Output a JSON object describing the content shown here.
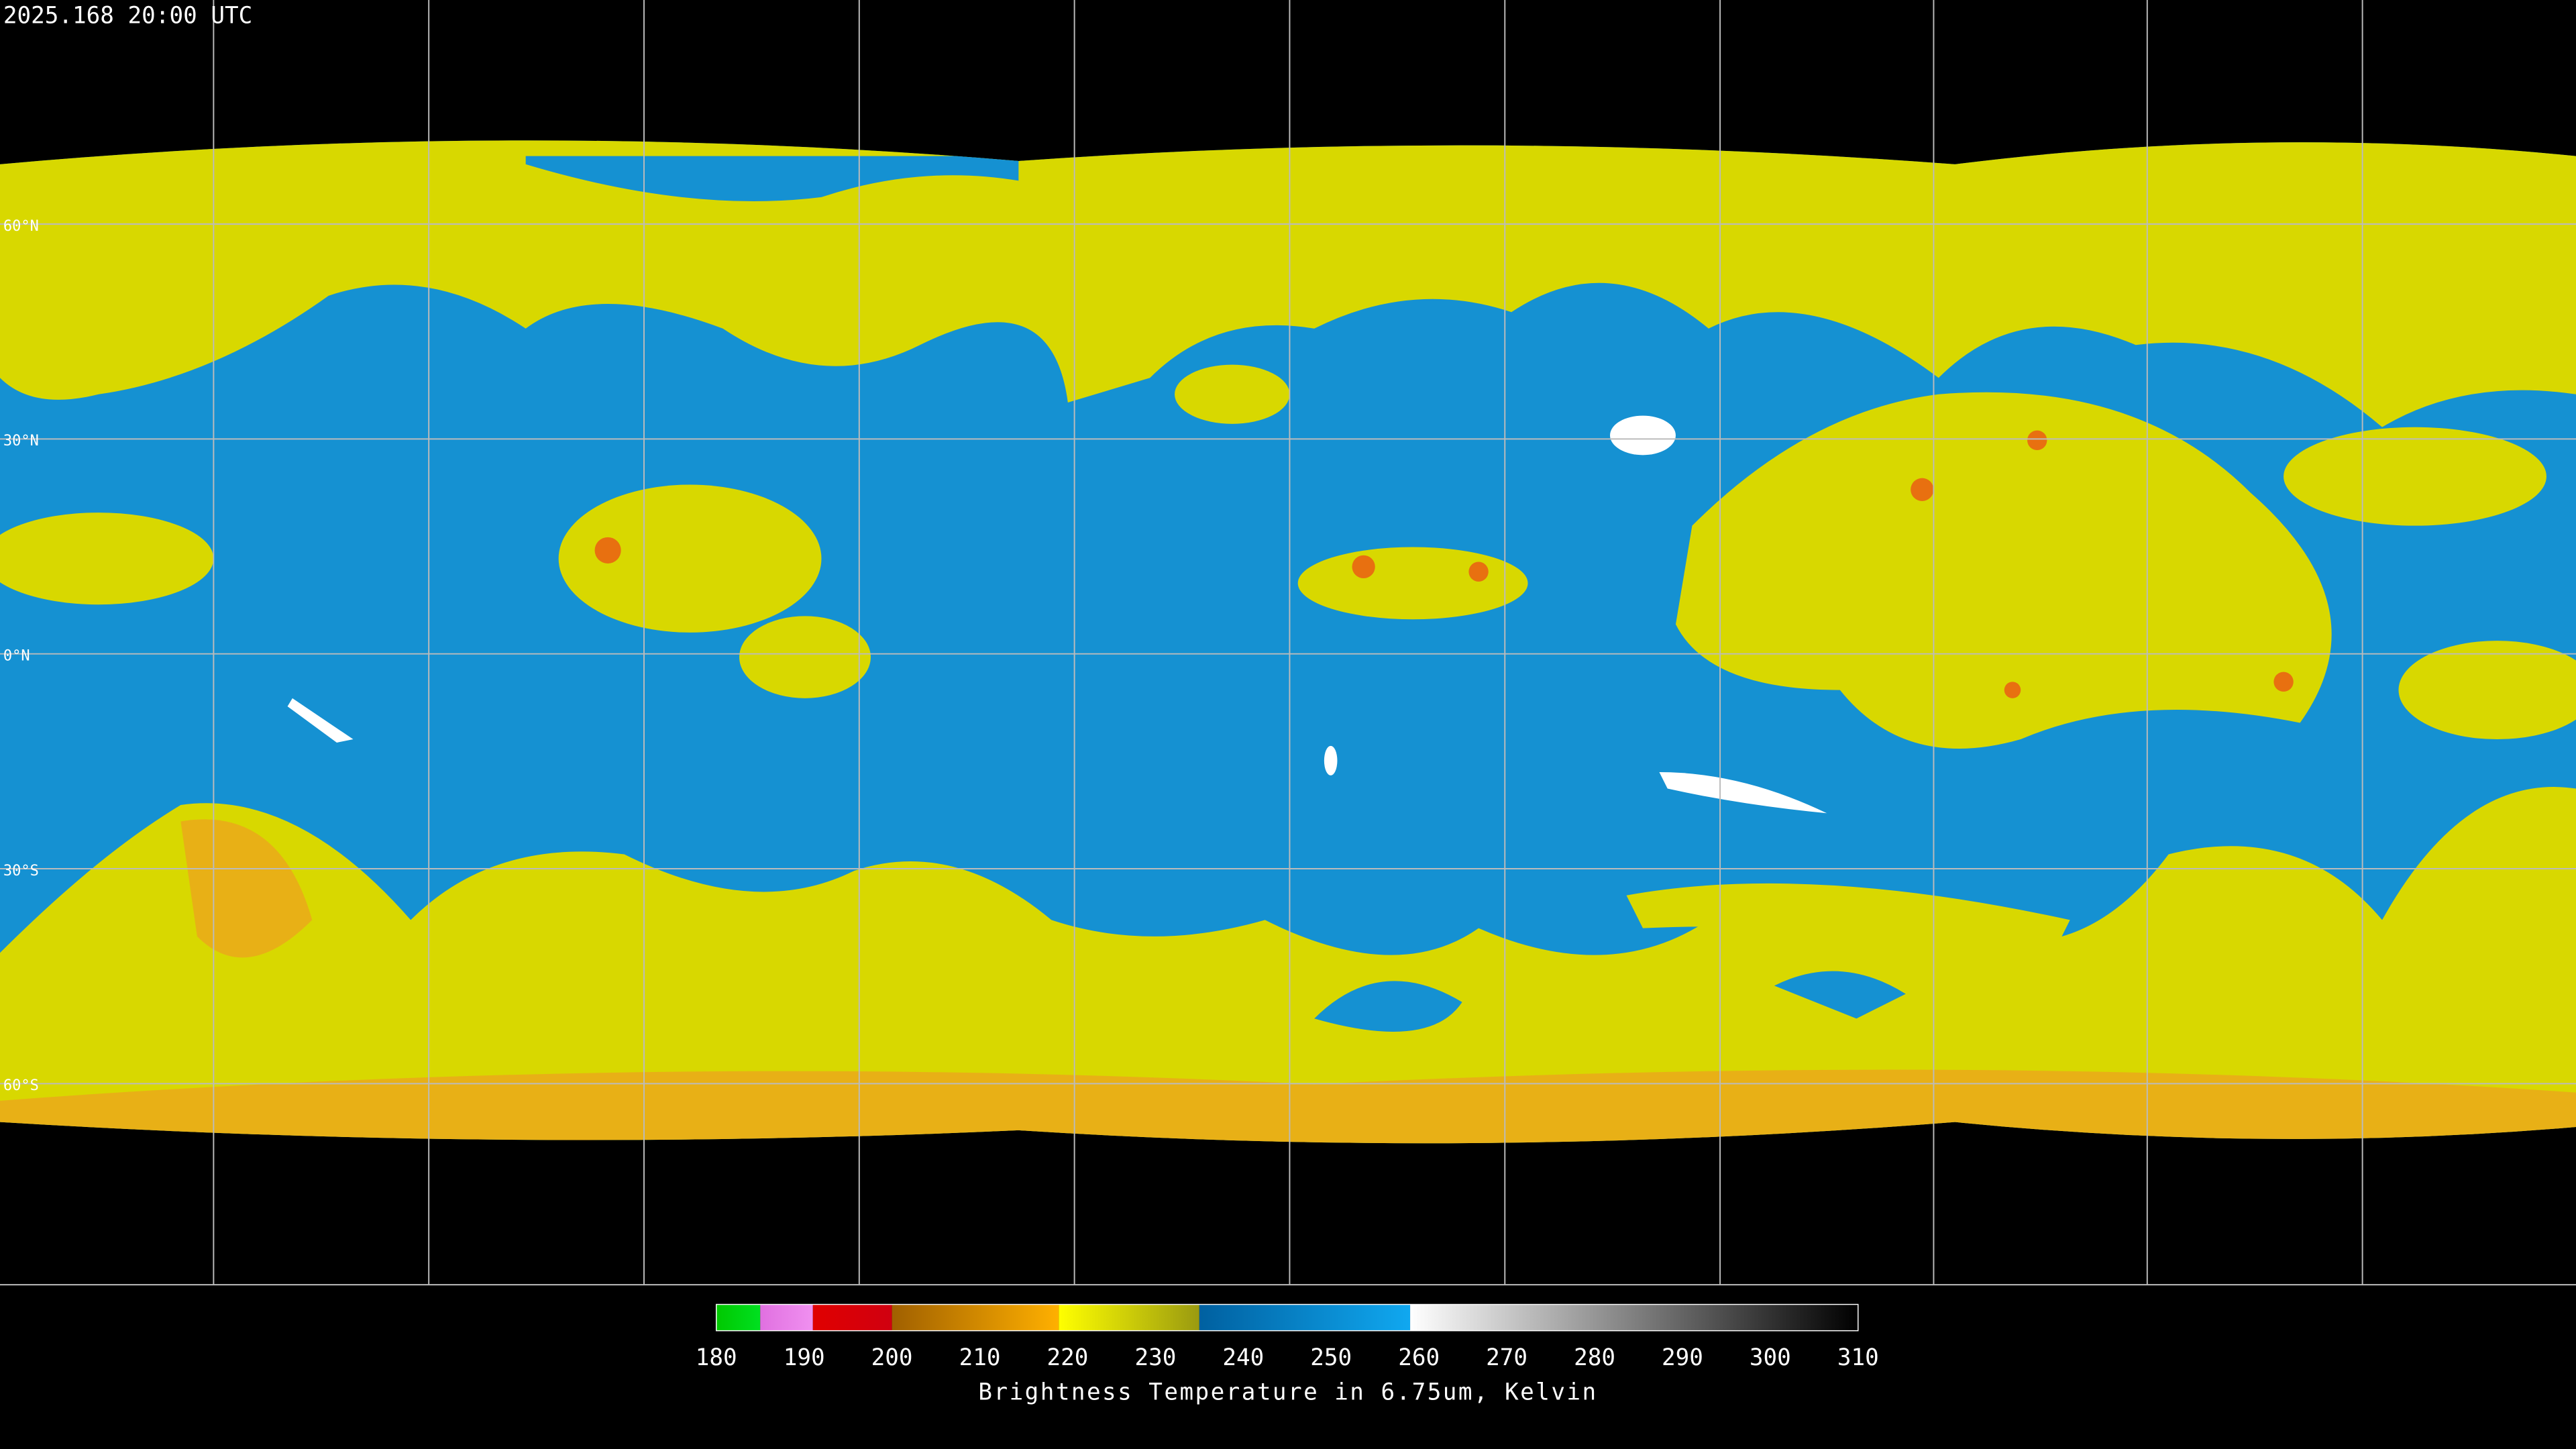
{
  "header": {
    "timestamp": "2025.168 20:00 UTC"
  },
  "gridlines": {
    "latitudes": [
      {
        "value": 60,
        "label": "60°N"
      },
      {
        "value": 30,
        "label": "30°N"
      },
      {
        "value": 0,
        "label": "0°N"
      },
      {
        "value": -30,
        "label": "30°S"
      },
      {
        "value": -60,
        "label": "60°S"
      }
    ]
  },
  "colorbar": {
    "range": [
      180,
      310
    ],
    "ticks": [
      180,
      190,
      200,
      210,
      220,
      230,
      240,
      250,
      260,
      270,
      280,
      290,
      300,
      310
    ],
    "label": "Brightness Temperature in 6.75um, Kelvin",
    "segments": [
      {
        "from": 180,
        "to": 185,
        "colors": [
          "#00c800",
          "#00e020"
        ]
      },
      {
        "from": 185,
        "to": 191,
        "colors": [
          "#e070e0",
          "#f090f0"
        ]
      },
      {
        "from": 191,
        "to": 200,
        "colors": [
          "#e00000",
          "#d00010"
        ]
      },
      {
        "from": 200,
        "to": 219,
        "colors": [
          "#a06000",
          "#ffb000"
        ]
      },
      {
        "from": 219,
        "to": 235,
        "colors": [
          "#ffff00",
          "#9a9a10"
        ]
      },
      {
        "from": 235,
        "to": 259,
        "colors": [
          "#0060a0",
          "#10a8f0"
        ]
      },
      {
        "from": 259,
        "to": 310,
        "colors": [
          "#ffffff",
          "#000000"
        ]
      }
    ]
  }
}
